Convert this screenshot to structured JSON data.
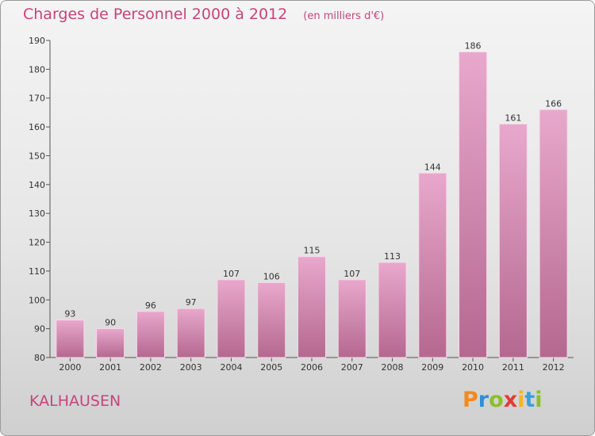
{
  "header": {
    "title": "Charges de Personnel 2000 à 2012",
    "subtitle": "(en milliers d'€)"
  },
  "footer": {
    "commune": "KALHAUSEN",
    "logo_text": "Proxiti"
  },
  "colors": {
    "title": "#c4457a",
    "bar_top": "#e8a8cc",
    "bar_bottom": "#b5688f",
    "bar_edge": "#f6d8e8"
  },
  "chart_data": {
    "type": "bar",
    "title": "Charges de Personnel 2000 à 2012",
    "subtitle": "(en milliers d'€)",
    "categories": [
      "2000",
      "2001",
      "2002",
      "2003",
      "2004",
      "2005",
      "2006",
      "2007",
      "2008",
      "2009",
      "2010",
      "2011",
      "2012"
    ],
    "values": [
      93,
      90,
      96,
      97,
      107,
      106,
      115,
      107,
      113,
      144,
      186,
      161,
      166
    ],
    "ylim": [
      80,
      190
    ],
    "yticks": [
      80,
      90,
      100,
      110,
      120,
      130,
      140,
      150,
      160,
      170,
      180,
      190
    ],
    "grid": false,
    "data_labels": true
  }
}
